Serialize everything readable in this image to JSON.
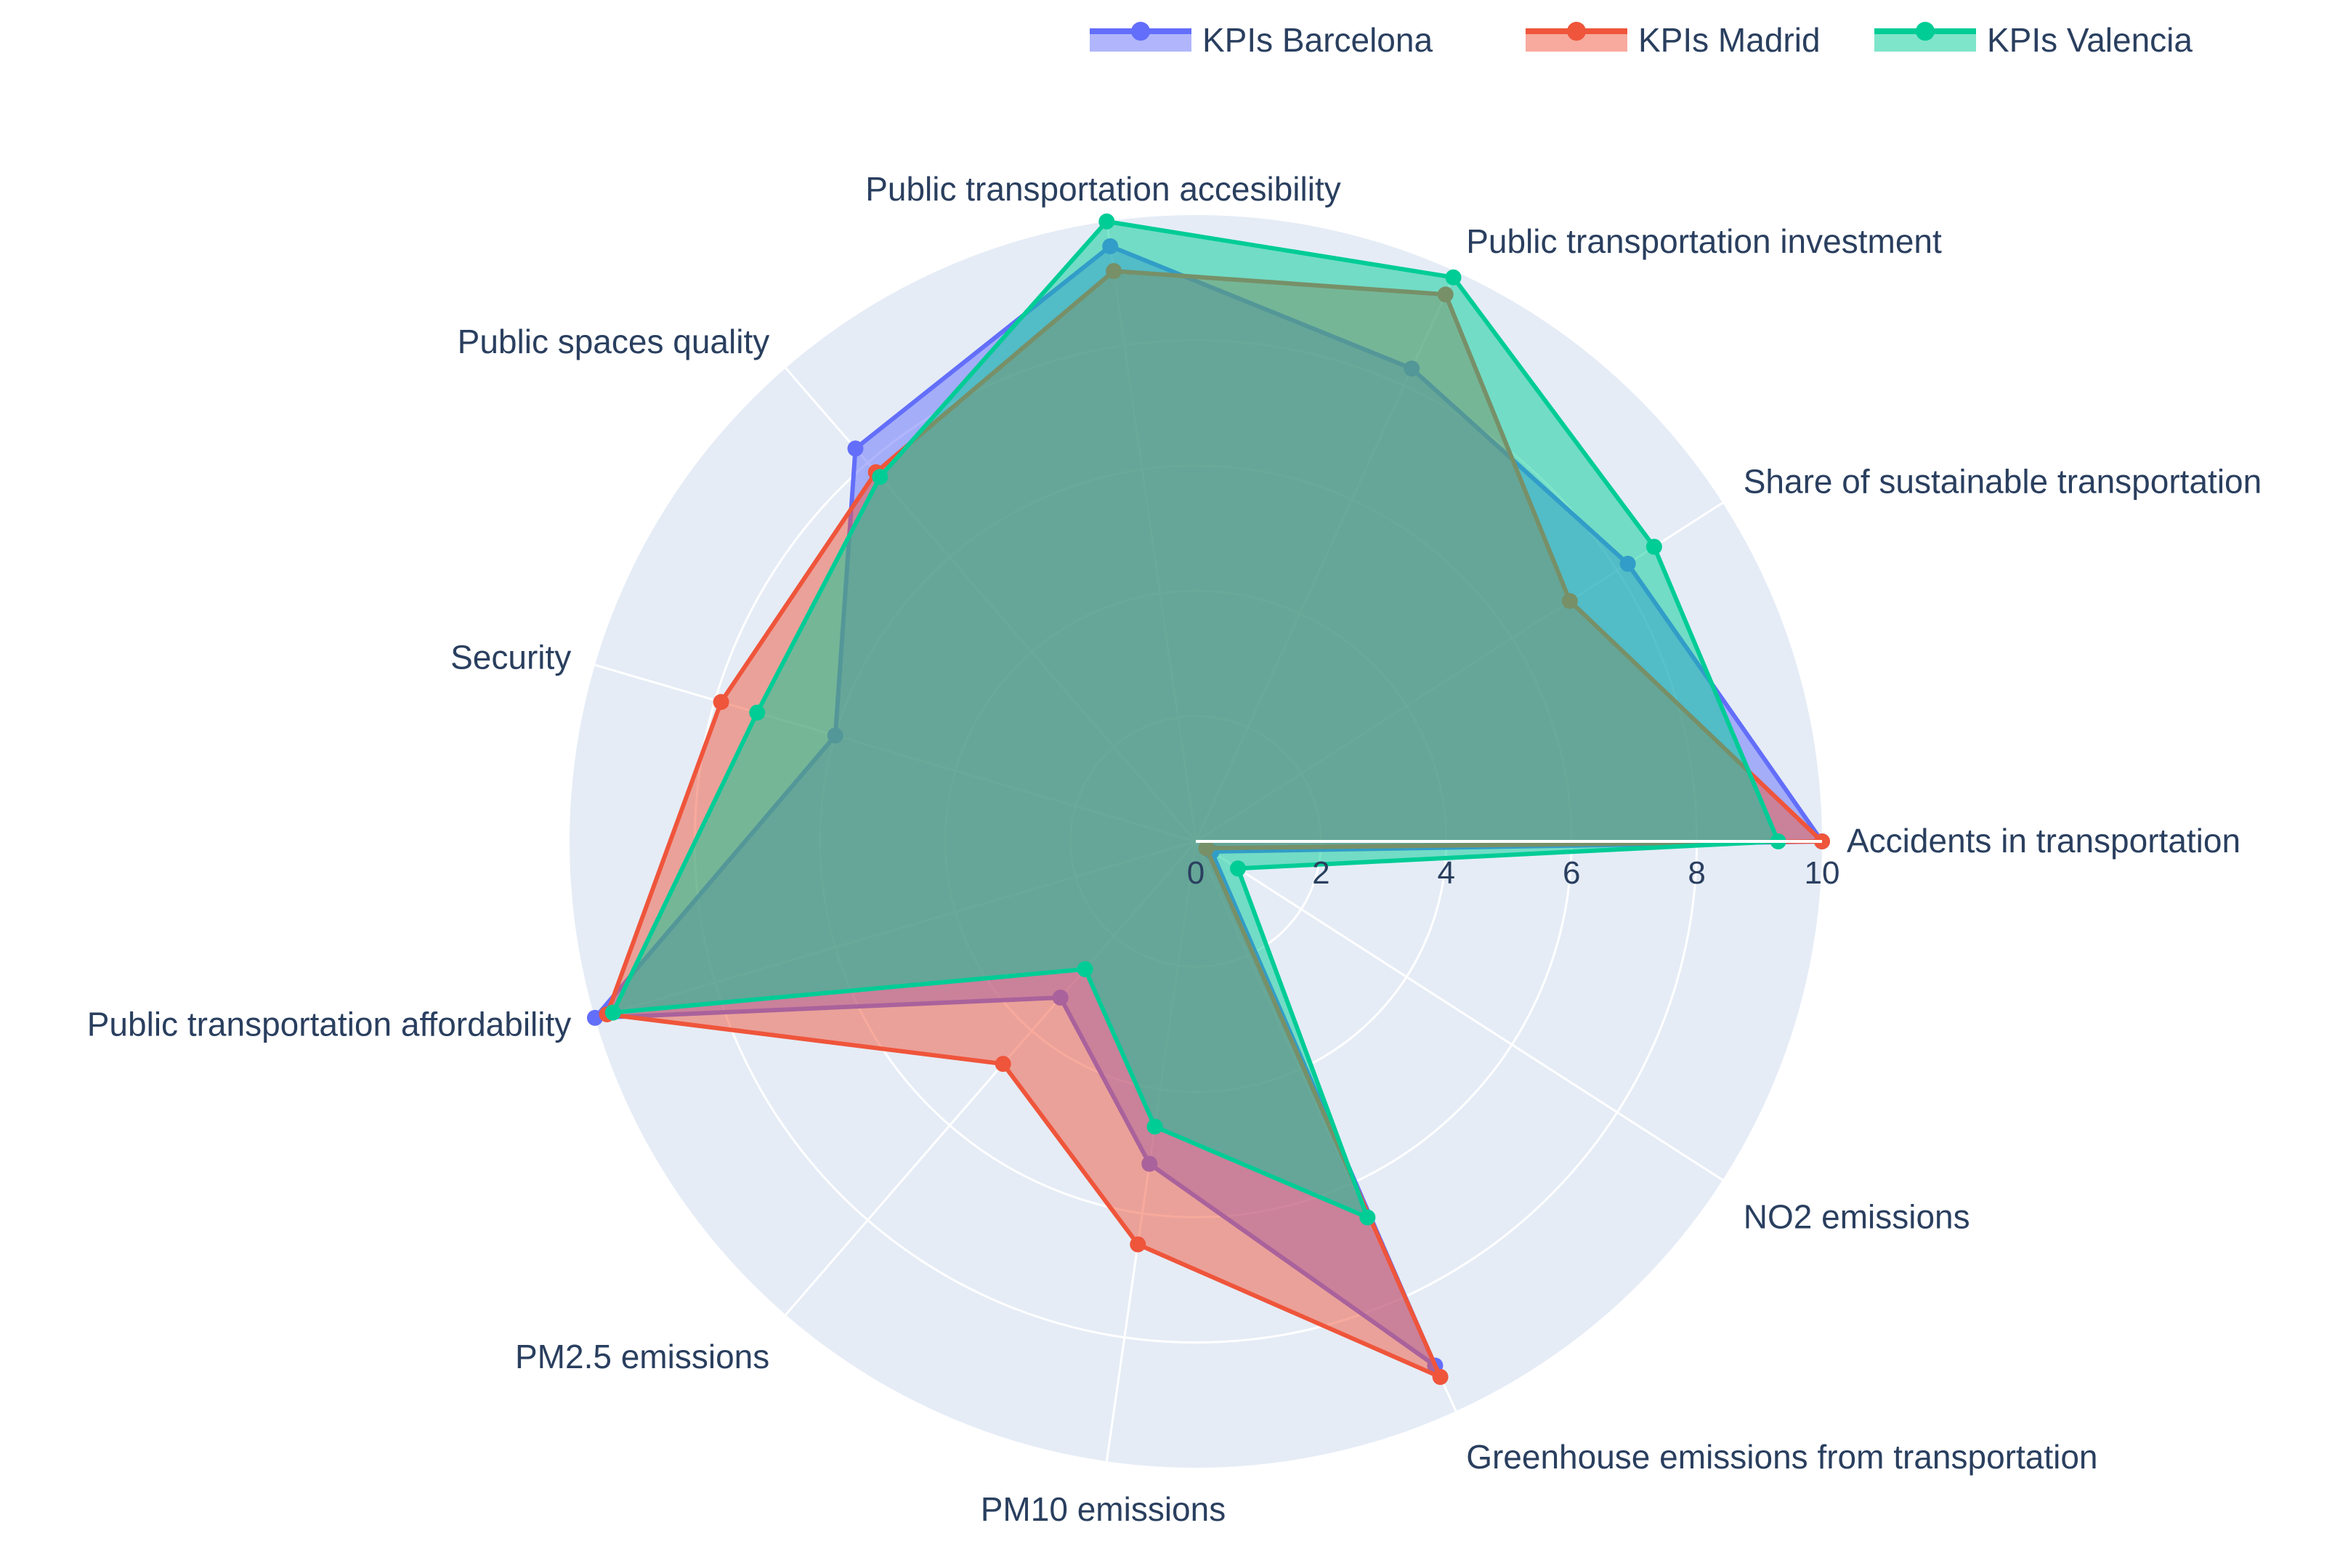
{
  "chart_data": {
    "type": "radar",
    "title": "",
    "radial_range": [
      0,
      10
    ],
    "radial_ticks": [
      "0",
      "2",
      "4",
      "6",
      "8",
      "10"
    ],
    "grid": true,
    "legend_position": "top-right",
    "categories": [
      "Accidents in transportation",
      "Share of sustainable transportation",
      "Public transportation investment",
      "Public transportation accesibility",
      "Public spaces quality",
      "Security",
      "Public transportation affordability",
      "PM2.5 emissions",
      "PM10 emissions",
      "Greenhouse emissions from transportation",
      "NO2 emissions"
    ],
    "series": [
      {
        "name": "KPIs Barcelona",
        "color": "#636efa",
        "values": [
          10.0,
          8.2,
          8.3,
          9.6,
          8.3,
          6.0,
          10.0,
          3.3,
          5.2,
          9.2,
          0.3
        ]
      },
      {
        "name": "KPIs Madrid",
        "color": "#ef553b",
        "values": [
          10.0,
          7.1,
          9.6,
          9.2,
          7.8,
          7.9,
          9.8,
          4.7,
          6.5,
          9.4,
          0.2
        ]
      },
      {
        "name": "KPIs Valencia",
        "color": "#00cc96",
        "values": [
          9.3,
          8.7,
          9.9,
          10.3,
          7.7,
          7.3,
          9.7,
          2.7,
          4.6,
          6.6,
          0.8
        ]
      }
    ]
  }
}
